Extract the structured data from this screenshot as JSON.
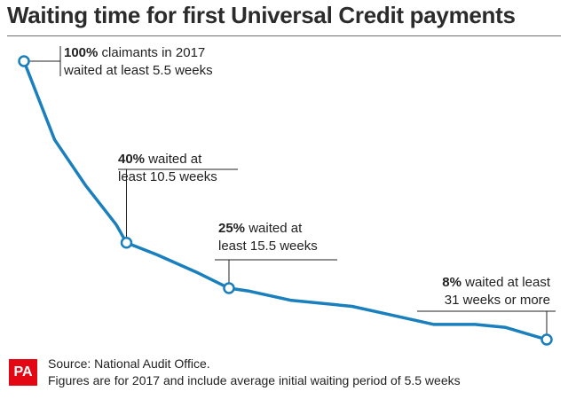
{
  "title": "Waiting time for first Universal Credit payments",
  "footer": {
    "logo": "PA",
    "source": "Source: National Audit Office.",
    "note": "Figures are for 2017 and include average initial waiting period of 5.5 weeks"
  },
  "colors": {
    "line": "#1a7fbd",
    "logo": "#e30613",
    "text": "#222222"
  },
  "chart_data": {
    "type": "line",
    "title": "Waiting time for first Universal Credit payments",
    "xlabel": "",
    "ylabel": "",
    "grid": false,
    "legend": "none",
    "x_unit": "weeks",
    "y_unit": "% of claimants",
    "xlim": [
      5.5,
      31
    ],
    "ylim": [
      0,
      100
    ],
    "x": [
      5.5,
      7,
      8.5,
      10,
      10.5,
      12,
      14,
      15.5,
      16.5,
      18.5,
      21.5,
      23.5,
      25.5,
      27.5,
      29,
      31
    ],
    "values": [
      100,
      74,
      59,
      46,
      40,
      36,
      30,
      25,
      24,
      21,
      19,
      16,
      13,
      13,
      12,
      8
    ],
    "annotations": [
      {
        "x": 5.5,
        "y": 100,
        "bold": "100%",
        "lines": [
          "claimants in 2017",
          "waited at least 5.5 weeks"
        ]
      },
      {
        "x": 10.5,
        "y": 40,
        "bold": "40%",
        "lines": [
          "waited at",
          "least 10.5 weeks"
        ]
      },
      {
        "x": 15.5,
        "y": 25,
        "bold": "25%",
        "lines": [
          "waited at",
          "least 15.5 weeks"
        ]
      },
      {
        "x": 31,
        "y": 8,
        "bold": "8%",
        "lines": [
          "waited at least",
          "31 weeks or more"
        ]
      }
    ]
  }
}
